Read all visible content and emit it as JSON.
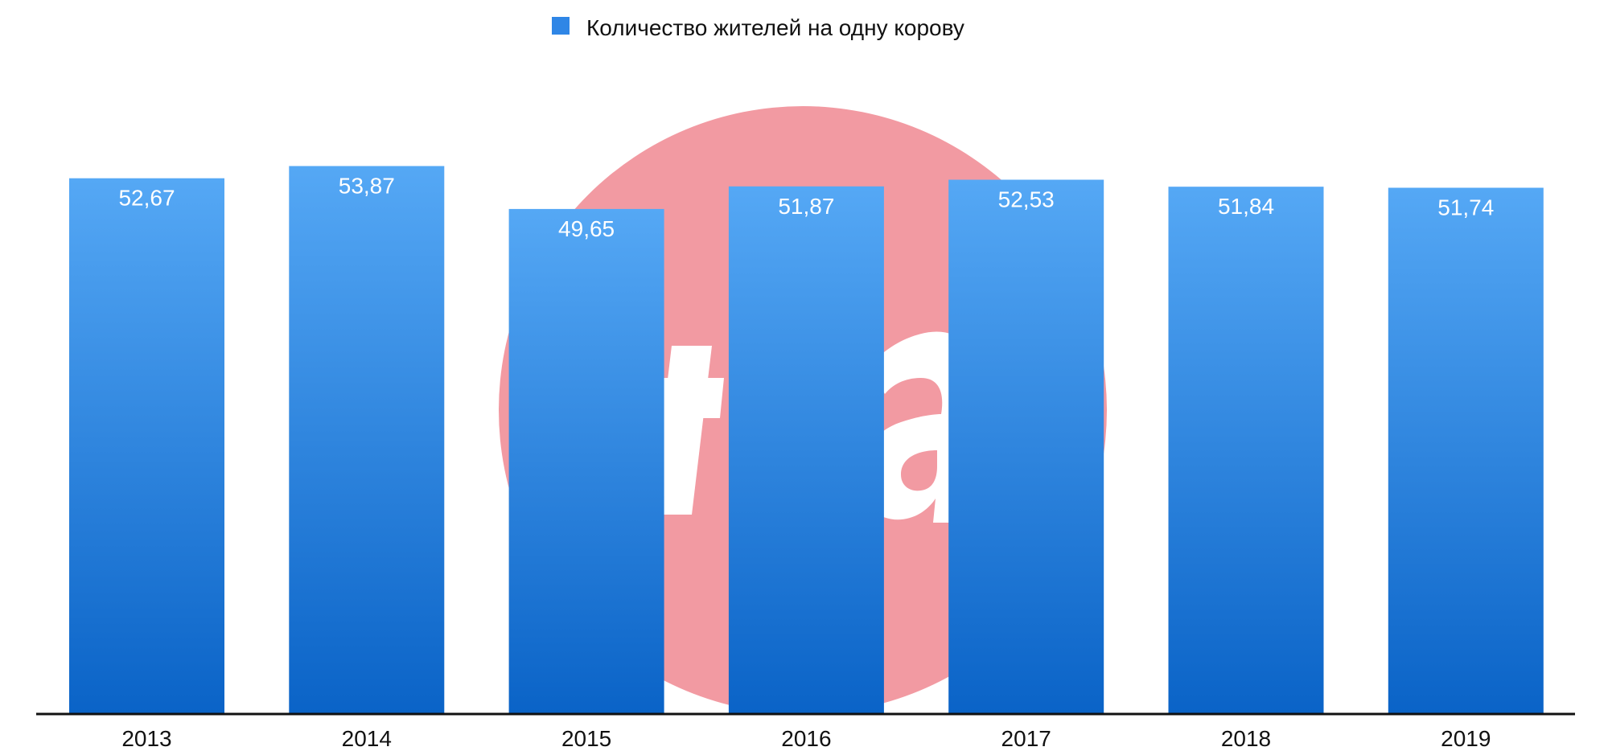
{
  "chart_data": {
    "type": "bar",
    "categories": [
      "2013",
      "2014",
      "2015",
      "2016",
      "2017",
      "2018",
      "2019"
    ],
    "series": [
      {
        "name": "Количество жителей на одну корову",
        "values": [
          52.67,
          53.87,
          49.65,
          51.87,
          52.53,
          51.84,
          51.74
        ],
        "labels": [
          "52,67",
          "53,87",
          "49,65",
          "51,87",
          "52,53",
          "51,84",
          "51,74"
        ]
      }
    ],
    "title": "",
    "xlabel": "",
    "ylabel": "",
    "ylim": [
      0,
      58
    ],
    "grid": false,
    "legend_position": "top-center",
    "colors": {
      "bar_top": "#55a8f5",
      "bar_bottom": "#0a63c7",
      "legend_swatch": "#2f86e6",
      "axis": "#111111",
      "watermark": "#f29aa2"
    }
  }
}
